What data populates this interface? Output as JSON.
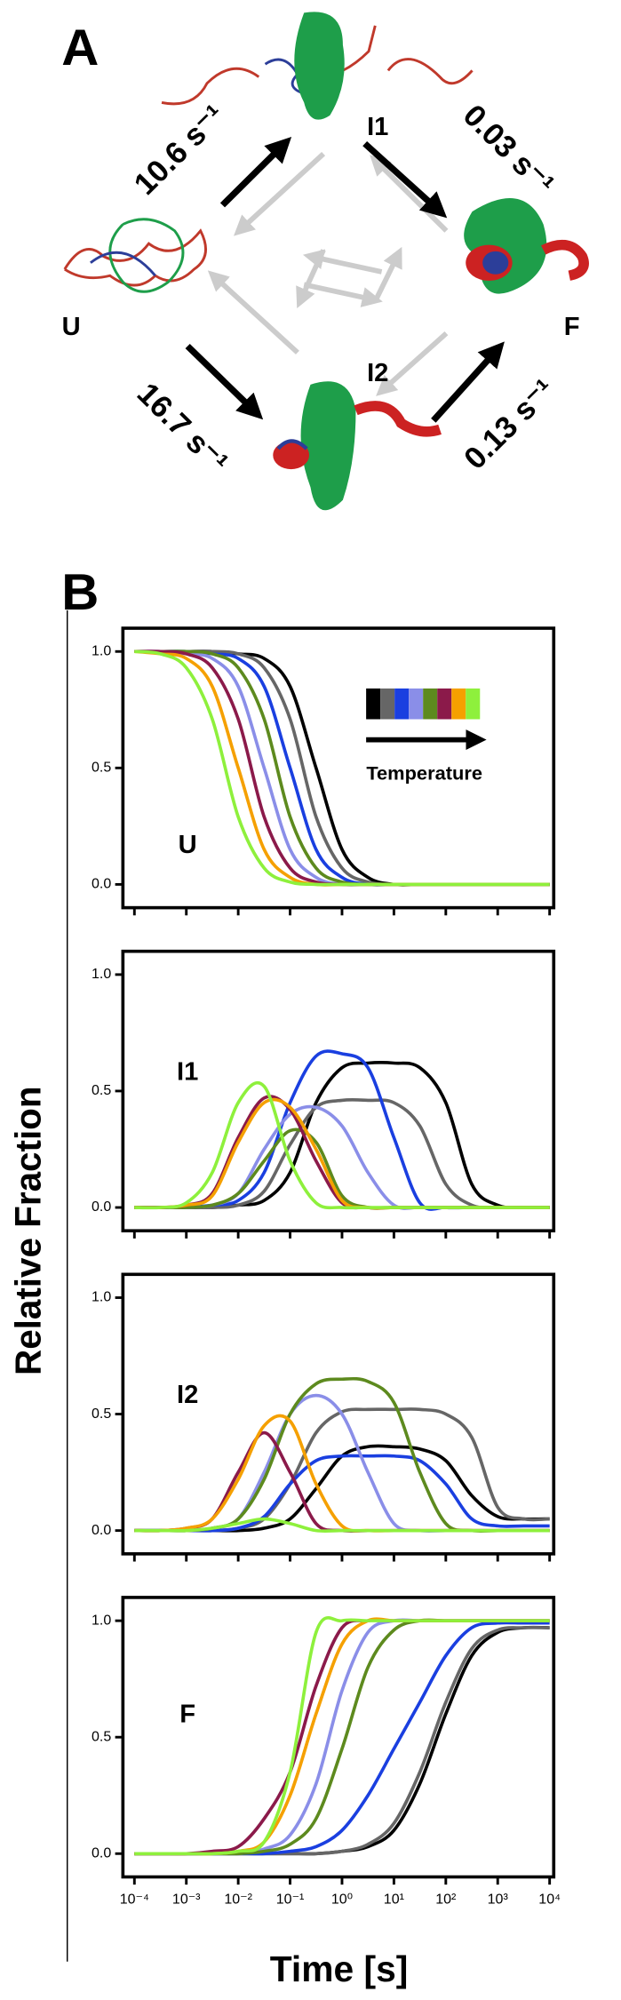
{
  "panel_a": {
    "label": "A",
    "states": [
      "U",
      "I1",
      "F",
      "I2"
    ],
    "rates": [
      "10.6 s⁻¹",
      "0.03 s⁻¹",
      "16.7 s⁻¹",
      "0.13 s⁻¹"
    ]
  },
  "panel_b": {
    "label": "B",
    "ylabel": "Relative Fraction",
    "xlabel": "Time [s]"
  },
  "chart_data": [
    {
      "type": "line",
      "label": "U",
      "legend_title": "Temperature",
      "xscale": "log",
      "x": [
        0.0001,
        0.000316,
        0.001,
        0.00316,
        0.01,
        0.0316,
        0.1,
        0.316,
        1,
        3.16,
        10,
        31.6,
        100,
        316,
        1000,
        3162,
        10000
      ],
      "xlim": [
        6e-05,
        12000
      ],
      "ylim": [
        -0.1,
        1.1
      ],
      "xticks": [
        0.0001,
        0.001,
        0.01,
        0.1,
        1,
        10,
        100,
        1000,
        10000
      ],
      "yticks": [
        {
          "value": 0,
          "label": "0.0"
        },
        {
          "value": 0.5,
          "label": "0.5"
        },
        {
          "value": 1,
          "label": "1.0"
        }
      ],
      "series": [
        {
          "color": "#000000",
          "values": [
            1,
            1,
            1,
            1,
            0.99,
            0.97,
            0.85,
            0.5,
            0.15,
            0.03,
            0,
            0,
            0,
            0,
            0,
            0,
            0
          ]
        },
        {
          "color": "#666666",
          "values": [
            1,
            1,
            1,
            1,
            0.99,
            0.93,
            0.71,
            0.29,
            0.07,
            0.01,
            0,
            0,
            0,
            0,
            0,
            0,
            0
          ]
        },
        {
          "color": "#1a3fe0",
          "values": [
            1,
            1,
            1,
            0.99,
            0.97,
            0.85,
            0.5,
            0.15,
            0.03,
            0,
            0,
            0,
            0,
            0,
            0,
            0,
            0
          ]
        },
        {
          "color": "#8a8ee8",
          "values": [
            1,
            1,
            0.99,
            0.97,
            0.85,
            0.5,
            0.15,
            0.03,
            0,
            0,
            0,
            0,
            0,
            0,
            0,
            0,
            0
          ]
        },
        {
          "color": "#5d8a1e",
          "values": [
            1,
            1,
            1,
            0.99,
            0.93,
            0.71,
            0.29,
            0.07,
            0.01,
            0,
            0,
            0,
            0,
            0,
            0,
            0,
            0
          ]
        },
        {
          "color": "#8b1a4a",
          "values": [
            1,
            1,
            0.99,
            0.93,
            0.71,
            0.29,
            0.07,
            0.01,
            0,
            0,
            0,
            0,
            0,
            0,
            0,
            0,
            0
          ]
        },
        {
          "color": "#f5a000",
          "values": [
            1,
            0.99,
            0.97,
            0.85,
            0.5,
            0.15,
            0.03,
            0,
            0,
            0,
            0,
            0,
            0,
            0,
            0,
            0,
            0
          ]
        },
        {
          "color": "#8ef03c",
          "values": [
            1,
            0.99,
            0.93,
            0.71,
            0.29,
            0.07,
            0.01,
            0,
            0,
            0,
            0,
            0,
            0,
            0,
            0,
            0,
            0
          ]
        }
      ]
    },
    {
      "type": "line",
      "label": "I1",
      "xscale": "log",
      "x": [
        0.0001,
        0.000316,
        0.001,
        0.00316,
        0.01,
        0.0316,
        0.1,
        0.316,
        1,
        3.16,
        10,
        31.6,
        100,
        316,
        1000,
        3162,
        10000
      ],
      "xlim": [
        6e-05,
        12000
      ],
      "ylim": [
        -0.1,
        1.1
      ],
      "xticks": [
        0.0001,
        0.001,
        0.01,
        0.1,
        1,
        10,
        100,
        1000,
        10000
      ],
      "yticks": [
        {
          "value": 0,
          "label": "0.0"
        },
        {
          "value": 0.5,
          "label": "0.5"
        },
        {
          "value": 1,
          "label": "1.0"
        }
      ],
      "series": [
        {
          "color": "#000000",
          "values": [
            0,
            0,
            0,
            0,
            0.01,
            0.03,
            0.15,
            0.45,
            0.6,
            0.62,
            0.62,
            0.6,
            0.45,
            0.1,
            0.01,
            0,
            0
          ]
        },
        {
          "color": "#666666",
          "values": [
            0,
            0,
            0,
            0,
            0.01,
            0.07,
            0.27,
            0.43,
            0.46,
            0.46,
            0.45,
            0.35,
            0.1,
            0.01,
            0,
            0,
            0
          ]
        },
        {
          "color": "#1a3fe0",
          "values": [
            0,
            0,
            0,
            0.01,
            0.03,
            0.15,
            0.45,
            0.65,
            0.66,
            0.6,
            0.3,
            0.02,
            0,
            0,
            0,
            0,
            0
          ]
        },
        {
          "color": "#8a8ee8",
          "values": [
            0,
            0,
            0,
            0.01,
            0.06,
            0.25,
            0.4,
            0.43,
            0.35,
            0.15,
            0.01,
            0,
            0,
            0,
            0,
            0,
            0
          ]
        },
        {
          "color": "#5d8a1e",
          "values": [
            0,
            0,
            0,
            0.01,
            0.06,
            0.2,
            0.33,
            0.28,
            0.05,
            0,
            0,
            0,
            0,
            0,
            0,
            0,
            0
          ]
        },
        {
          "color": "#8b1a4a",
          "values": [
            0,
            0,
            0.01,
            0.06,
            0.3,
            0.47,
            0.42,
            0.2,
            0.02,
            0,
            0,
            0,
            0,
            0,
            0,
            0,
            0
          ]
        },
        {
          "color": "#f5a000",
          "values": [
            0,
            0,
            0.01,
            0.05,
            0.28,
            0.45,
            0.43,
            0.25,
            0.03,
            0,
            0,
            0,
            0,
            0,
            0,
            0,
            0
          ]
        },
        {
          "color": "#8ef03c",
          "values": [
            0,
            0,
            0.02,
            0.15,
            0.45,
            0.52,
            0.2,
            0.02,
            0,
            0,
            0,
            0,
            0,
            0,
            0,
            0,
            0
          ]
        }
      ]
    },
    {
      "type": "line",
      "label": "I2",
      "xscale": "log",
      "x": [
        0.0001,
        0.000316,
        0.001,
        0.00316,
        0.01,
        0.0316,
        0.1,
        0.316,
        1,
        3.16,
        10,
        31.6,
        100,
        316,
        1000,
        3162,
        10000
      ],
      "xlim": [
        6e-05,
        12000
      ],
      "ylim": [
        -0.1,
        1.1
      ],
      "xticks": [
        0.0001,
        0.001,
        0.01,
        0.1,
        1,
        10,
        100,
        1000,
        10000
      ],
      "yticks": [
        {
          "value": 0,
          "label": "0.0"
        },
        {
          "value": 0.5,
          "label": "0.5"
        },
        {
          "value": 1,
          "label": "1.0"
        }
      ],
      "series": [
        {
          "color": "#000000",
          "values": [
            0,
            0,
            0,
            0,
            0,
            0.01,
            0.05,
            0.18,
            0.32,
            0.36,
            0.36,
            0.35,
            0.3,
            0.15,
            0.06,
            0.05,
            0.05
          ]
        },
        {
          "color": "#666666",
          "values": [
            0,
            0,
            0,
            0,
            0.01,
            0.05,
            0.2,
            0.42,
            0.51,
            0.52,
            0.52,
            0.52,
            0.5,
            0.4,
            0.1,
            0.05,
            0.05
          ]
        },
        {
          "color": "#1a3fe0",
          "values": [
            0,
            0,
            0,
            0,
            0.01,
            0.06,
            0.2,
            0.3,
            0.32,
            0.32,
            0.32,
            0.3,
            0.2,
            0.05,
            0.02,
            0.02,
            0.02
          ]
        },
        {
          "color": "#8a8ee8",
          "values": [
            0,
            0,
            0,
            0.01,
            0.05,
            0.25,
            0.5,
            0.58,
            0.5,
            0.25,
            0.03,
            0,
            0,
            0,
            0,
            0,
            0
          ]
        },
        {
          "color": "#5d8a1e",
          "values": [
            0,
            0,
            0,
            0.01,
            0.05,
            0.22,
            0.5,
            0.63,
            0.65,
            0.64,
            0.55,
            0.25,
            0.03,
            0,
            0,
            0,
            0
          ]
        },
        {
          "color": "#8b1a4a",
          "values": [
            0,
            0,
            0.01,
            0.05,
            0.25,
            0.42,
            0.25,
            0.03,
            0,
            0,
            0,
            0,
            0,
            0,
            0,
            0,
            0
          ]
        },
        {
          "color": "#f5a000",
          "values": [
            0,
            0,
            0.01,
            0.05,
            0.22,
            0.45,
            0.47,
            0.2,
            0.02,
            0,
            0,
            0,
            0,
            0,
            0,
            0,
            0
          ]
        },
        {
          "color": "#8ef03c",
          "values": [
            0,
            0,
            0,
            0.01,
            0.03,
            0.05,
            0.03,
            0,
            0,
            0,
            0,
            0,
            0,
            0,
            0,
            0,
            0
          ]
        }
      ]
    },
    {
      "type": "line",
      "label": "F",
      "xscale": "log",
      "x": [
        0.0001,
        0.000316,
        0.001,
        0.00316,
        0.01,
        0.0316,
        0.1,
        0.316,
        1,
        3.16,
        10,
        31.6,
        100,
        316,
        1000,
        3162,
        10000
      ],
      "xlim": [
        6e-05,
        12000
      ],
      "ylim": [
        -0.1,
        1.1
      ],
      "xticks": [
        {
          "value": 0.0001,
          "label": "10⁻⁴"
        },
        {
          "value": 0.001,
          "label": "10⁻³"
        },
        {
          "value": 0.01,
          "label": "10⁻²"
        },
        {
          "value": 0.1,
          "label": "10⁻¹"
        },
        {
          "value": 1,
          "label": "10⁰"
        },
        {
          "value": 10,
          "label": "10¹"
        },
        {
          "value": 100,
          "label": "10²"
        },
        {
          "value": 1000,
          "label": "10³"
        },
        {
          "value": 10000,
          "label": "10⁴"
        }
      ],
      "yticks": [
        {
          "value": 0,
          "label": "0.0"
        },
        {
          "value": 0.5,
          "label": "0.5"
        },
        {
          "value": 1,
          "label": "1.0"
        }
      ],
      "series": [
        {
          "color": "#000000",
          "values": [
            0,
            0,
            0,
            0,
            0,
            0,
            0,
            0,
            0.01,
            0.03,
            0.1,
            0.3,
            0.6,
            0.85,
            0.95,
            0.97,
            0.97
          ]
        },
        {
          "color": "#666666",
          "values": [
            0,
            0,
            0,
            0,
            0,
            0,
            0,
            0,
            0.01,
            0.04,
            0.13,
            0.35,
            0.65,
            0.88,
            0.96,
            0.97,
            0.97
          ]
        },
        {
          "color": "#1a3fe0",
          "values": [
            0,
            0,
            0,
            0,
            0,
            0,
            0.01,
            0.03,
            0.1,
            0.25,
            0.45,
            0.65,
            0.85,
            0.97,
            0.99,
            0.99,
            0.99
          ]
        },
        {
          "color": "#8a8ee8",
          "values": [
            0,
            0,
            0,
            0,
            0,
            0.02,
            0.08,
            0.3,
            0.7,
            0.95,
            1,
            1,
            1,
            1,
            1,
            1,
            1
          ]
        },
        {
          "color": "#5d8a1e",
          "values": [
            0,
            0,
            0,
            0,
            0,
            0.01,
            0.04,
            0.15,
            0.45,
            0.8,
            0.96,
            1,
            1,
            1,
            1,
            1,
            1
          ]
        },
        {
          "color": "#8b1a4a",
          "values": [
            0,
            0,
            0,
            0.01,
            0.03,
            0.15,
            0.35,
            0.72,
            0.97,
            1,
            1,
            1,
            1,
            1,
            1,
            1,
            1
          ]
        },
        {
          "color": "#f5a000",
          "values": [
            0,
            0,
            0,
            0,
            0.01,
            0.05,
            0.25,
            0.6,
            0.9,
            1,
            1,
            1,
            1,
            1,
            1,
            1,
            1
          ]
        },
        {
          "color": "#8ef03c",
          "values": [
            0,
            0,
            0,
            0,
            0.01,
            0.05,
            0.35,
            0.95,
            1,
            1,
            1,
            1,
            1,
            1,
            1,
            1,
            1
          ]
        }
      ]
    }
  ]
}
